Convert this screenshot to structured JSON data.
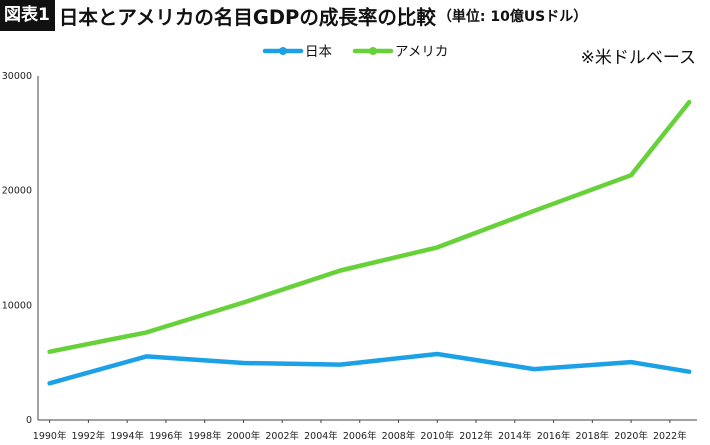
{
  "header": {
    "figure_label": "図表1",
    "title": "日本とアメリカの名目GDPの成長率の比較",
    "unit": "（単位: 10億USドル）"
  },
  "note": "※米ドルベース",
  "colors": {
    "japan": "#1ca1e6",
    "usa": "#67d13a",
    "axis": "#444444"
  },
  "chart_data": {
    "type": "line",
    "title": "日本とアメリカの名目GDPの成長率の比較",
    "subtitle": "（単位: 10億USドル）",
    "x_ticks": [
      "1990年",
      "1992年",
      "1994年",
      "1996年",
      "1998年",
      "2000年",
      "2002年",
      "2004年",
      "2006年",
      "2008年",
      "2010年",
      "2012年",
      "2014年",
      "2016年",
      "2018年",
      "2020年",
      "2022年"
    ],
    "y_ticks": [
      "0",
      "10000",
      "20000",
      "30000"
    ],
    "ylim": [
      0,
      30000
    ],
    "grid": false,
    "legend_position": "top-center",
    "series": [
      {
        "name": "日本",
        "color": "#1ca1e6",
        "points": [
          {
            "x": 1990,
            "y": 3200
          },
          {
            "x": 1995,
            "y": 5550
          },
          {
            "x": 2000,
            "y": 4970
          },
          {
            "x": 2005,
            "y": 4830
          },
          {
            "x": 2010,
            "y": 5760
          },
          {
            "x": 2015,
            "y": 4440
          },
          {
            "x": 2020,
            "y": 5050
          },
          {
            "x": 2023,
            "y": 4210
          }
        ]
      },
      {
        "name": "アメリカ",
        "color": "#67d13a",
        "points": [
          {
            "x": 1990,
            "y": 5960
          },
          {
            "x": 1995,
            "y": 7640
          },
          {
            "x": 2000,
            "y": 10250
          },
          {
            "x": 2005,
            "y": 13040
          },
          {
            "x": 2010,
            "y": 15050
          },
          {
            "x": 2015,
            "y": 18240
          },
          {
            "x": 2020,
            "y": 21350
          },
          {
            "x": 2023,
            "y": 27720
          }
        ]
      }
    ]
  }
}
